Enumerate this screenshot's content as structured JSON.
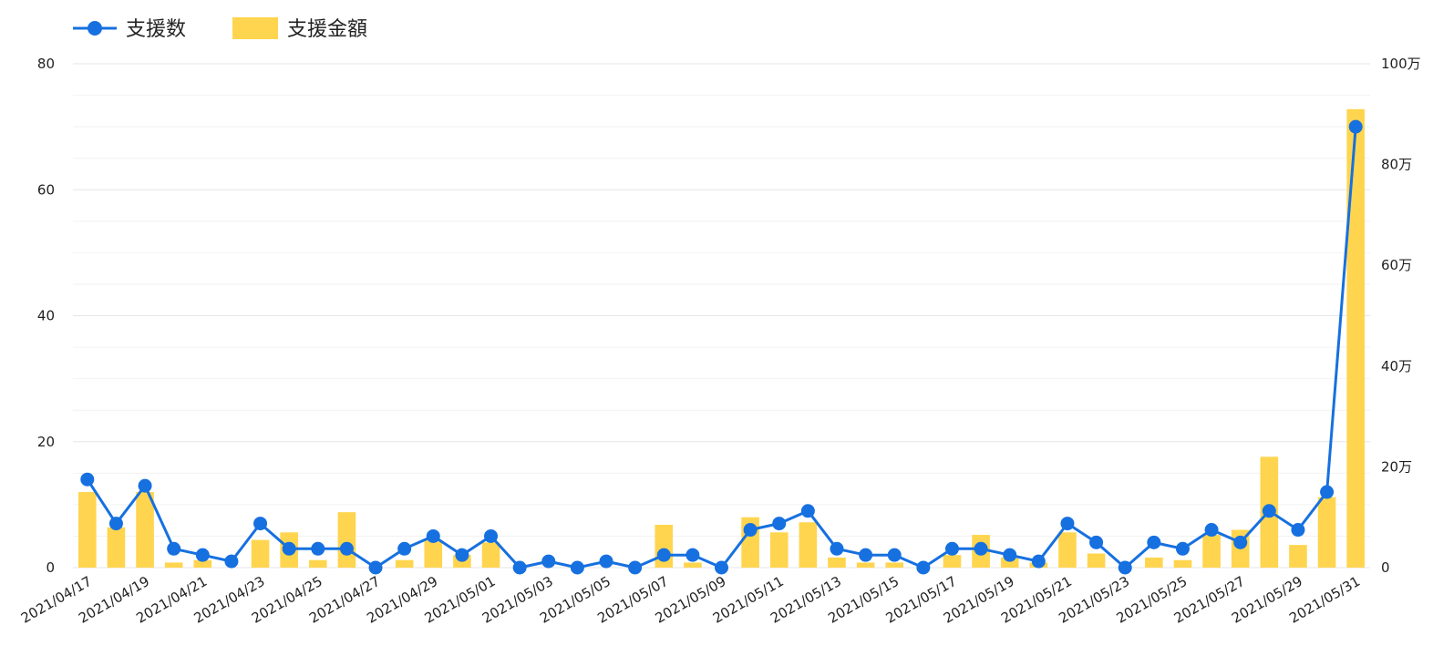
{
  "chart_data": {
    "type": "bar",
    "legend": {
      "placement": "top-left"
    },
    "grid": true,
    "categories": [
      "2021/04/17",
      "2021/04/18",
      "2021/04/19",
      "2021/04/20",
      "2021/04/21",
      "2021/04/22",
      "2021/04/23",
      "2021/04/24",
      "2021/04/25",
      "2021/04/26",
      "2021/04/27",
      "2021/04/28",
      "2021/04/29",
      "2021/04/30",
      "2021/05/01",
      "2021/05/02",
      "2021/05/03",
      "2021/05/04",
      "2021/05/05",
      "2021/05/06",
      "2021/05/07",
      "2021/05/08",
      "2021/05/09",
      "2021/05/10",
      "2021/05/11",
      "2021/05/12",
      "2021/05/13",
      "2021/05/14",
      "2021/05/15",
      "2021/05/16",
      "2021/05/17",
      "2021/05/18",
      "2021/05/19",
      "2021/05/20",
      "2021/05/21",
      "2021/05/22",
      "2021/05/23",
      "2021/05/24",
      "2021/05/25",
      "2021/05/26",
      "2021/05/27",
      "2021/05/28",
      "2021/05/29",
      "2021/05/30",
      "2021/05/31"
    ],
    "tick_labels": [
      "2021/04/17",
      "2021/04/19",
      "2021/04/21",
      "2021/04/23",
      "2021/04/25",
      "2021/04/27",
      "2021/04/29",
      "2021/05/01",
      "2021/05/03",
      "2021/05/05",
      "2021/05/07",
      "2021/05/09",
      "2021/05/11",
      "2021/05/13",
      "2021/05/15",
      "2021/05/17",
      "2021/05/19",
      "2021/05/21",
      "2021/05/23",
      "2021/05/25",
      "2021/05/27",
      "2021/05/29",
      "2021/05/31"
    ],
    "series": [
      {
        "name": "支援金額",
        "kind": "bar",
        "axis": "right",
        "color": "#FFD54F",
        "values": [
          150000,
          80000,
          150000,
          10000,
          15000,
          0,
          55000,
          70000,
          15000,
          110000,
          0,
          15000,
          55000,
          25000,
          50000,
          0,
          0,
          0,
          0,
          0,
          85000,
          10000,
          0,
          100000,
          70000,
          90000,
          20000,
          10000,
          10000,
          0,
          25000,
          65000,
          20000,
          10000,
          70000,
          28000,
          0,
          20000,
          15000,
          65000,
          75000,
          220000,
          45000,
          140000,
          910000
        ]
      },
      {
        "name": "支援数",
        "kind": "line",
        "axis": "left",
        "color": "#1670E0",
        "values": [
          14,
          7,
          13,
          3,
          2,
          1,
          7,
          3,
          3,
          3,
          0,
          3,
          5,
          2,
          5,
          0,
          1,
          0,
          1,
          0,
          2,
          2,
          0,
          6,
          7,
          9,
          3,
          2,
          2,
          0,
          3,
          3,
          2,
          1,
          7,
          4,
          0,
          4,
          3,
          6,
          4,
          9,
          6,
          12,
          70
        ]
      }
    ],
    "y_left": {
      "ylim": [
        0,
        80
      ],
      "ticks": [
        "0",
        "20",
        "40",
        "60",
        "80"
      ]
    },
    "y_right": {
      "ylim": [
        0,
        1000000
      ],
      "ticks": [
        "0",
        "20万",
        "40万",
        "60万",
        "80万",
        "100万"
      ]
    }
  }
}
